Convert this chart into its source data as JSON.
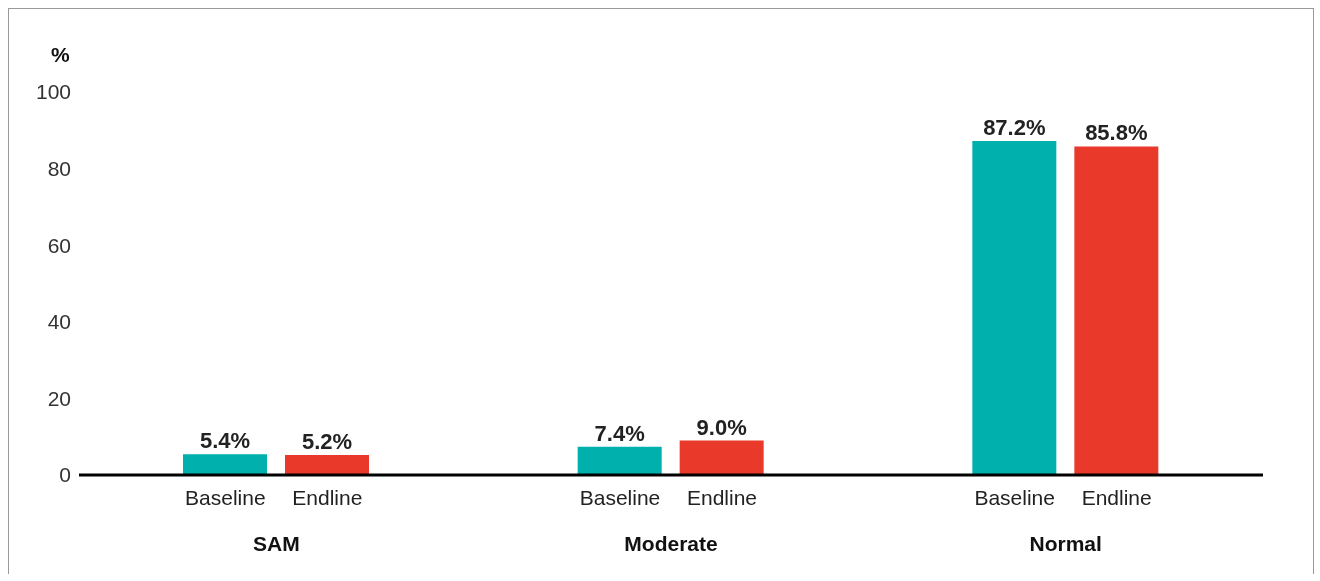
{
  "chart_data": {
    "type": "bar",
    "ylabel": "%",
    "categories": [
      "SAM",
      "Moderate",
      "Normal"
    ],
    "series": [
      {
        "name": "Baseline",
        "color": "#00b0ad",
        "values": [
          5.4,
          7.4,
          87.2
        ],
        "value_labels": [
          "5.4%",
          "7.4%",
          "87.2%"
        ]
      },
      {
        "name": "Endline",
        "color": "#e8392b",
        "values": [
          5.2,
          9.0,
          85.8
        ],
        "value_labels": [
          "5.2%",
          "9.0%",
          "85.8%"
        ]
      }
    ],
    "ylim": [
      0,
      100
    ],
    "yticks": [
      0,
      20,
      40,
      60,
      80,
      100
    ],
    "grid": false,
    "legend": false
  }
}
